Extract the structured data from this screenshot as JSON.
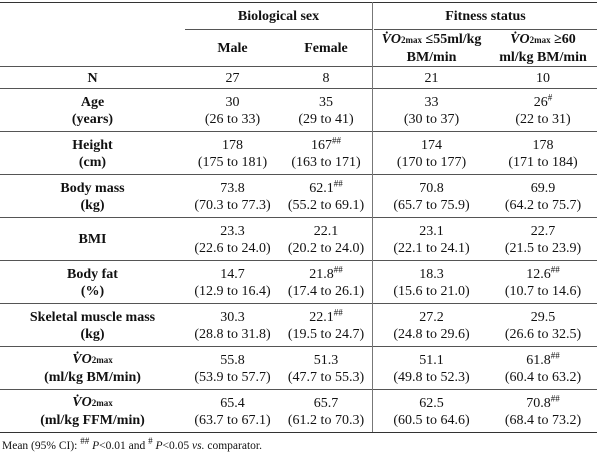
{
  "header": {
    "group_sex": "Biological sex",
    "group_fitness": "Fitness status",
    "col_male": "Male",
    "col_female": "Female",
    "col_fit_low_line1_a": "V̇O",
    "col_fit_low_line1_sub": "2max",
    "col_fit_low_line1_b": " ≤55ml/kg",
    "col_fit_low_line2": "BM/min",
    "col_fit_high_line1_a": "V̇O",
    "col_fit_high_line1_sub": "2max",
    "col_fit_high_line1_b": " ≥60",
    "col_fit_high_line2": "ml/kg BM/min"
  },
  "rows": [
    {
      "label1": "N",
      "label2": "",
      "male": "27",
      "male_ci": "",
      "female": "8",
      "female_ci": "",
      "low": "21",
      "low_ci": "",
      "high": "10",
      "high_ci": "",
      "female_sup": "",
      "high_sup": ""
    },
    {
      "label1": "Age",
      "label2": "(years)",
      "male": "30",
      "male_ci": "(26 to 33)",
      "female": "35",
      "female_ci": "(29 to 41)",
      "low": "33",
      "low_ci": "(30 to 37)",
      "high": "26",
      "high_ci": "(22 to 31)",
      "female_sup": "",
      "high_sup": "#"
    },
    {
      "label1": "Height",
      "label2": "(cm)",
      "male": "178",
      "male_ci": "(175 to 181)",
      "female": "167",
      "female_ci": "(163 to 171)",
      "low": "174",
      "low_ci": "(170 to 177)",
      "high": "178",
      "high_ci": "(171 to 184)",
      "female_sup": "##",
      "high_sup": ""
    },
    {
      "label1": "Body mass",
      "label2": "(kg)",
      "male": "73.8",
      "male_ci": "(70.3 to 77.3)",
      "female": "62.1",
      "female_ci": "(55.2 to 69.1)",
      "low": "70.8",
      "low_ci": "(65.7 to 75.9)",
      "high": "69.9",
      "high_ci": "(64.2 to 75.7)",
      "female_sup": "##",
      "high_sup": ""
    },
    {
      "label1": "BMI",
      "label2": "",
      "male": "23.3",
      "male_ci": "(22.6 to 24.0)",
      "female": "22.1",
      "female_ci": "(20.2 to 24.0)",
      "low": "23.1",
      "low_ci": "(22.1 to 24.1)",
      "high": "22.7",
      "high_ci": "(21.5 to 23.9)",
      "female_sup": "",
      "high_sup": ""
    },
    {
      "label1": "Body fat",
      "label2": "(%)",
      "male": "14.7",
      "male_ci": "(12.9 to 16.4)",
      "female": "21.8",
      "female_ci": "(17.4 to 26.1)",
      "low": "18.3",
      "low_ci": "(15.6 to 21.0)",
      "high": "12.6",
      "high_ci": "(10.7 to 14.6)",
      "female_sup": "##",
      "high_sup": "##"
    },
    {
      "label1": "Skeletal muscle mass",
      "label2": "(kg)",
      "male": "30.3",
      "male_ci": "(28.8 to 31.8)",
      "female": "22.1",
      "female_ci": "(19.5 to 24.7)",
      "low": "27.2",
      "low_ci": "(24.8 to 29.6)",
      "high": "29.5",
      "high_ci": "(26.6 to 32.5)",
      "female_sup": "##",
      "high_sup": ""
    },
    {
      "label1_vo": "V̇O",
      "label1_sub": "2max",
      "label2": "(ml/kg BM/min)",
      "male": "55.8",
      "male_ci": "(53.9 to 57.7)",
      "female": "51.3",
      "female_ci": "(47.7 to 55.3)",
      "low": "51.1",
      "low_ci": "(49.8 to 52.3)",
      "high": "61.8",
      "high_ci": "(60.4 to 63.2)",
      "female_sup": "",
      "high_sup": "##"
    },
    {
      "label1_vo": "V̇O",
      "label1_sub": "2max",
      "label2": "(ml/kg FFM/min)",
      "male": "65.4",
      "male_ci": "(63.7 to 67.1)",
      "female": "65.7",
      "female_ci": "(61.2 to 70.3)",
      "low": "62.5",
      "low_ci": "(60.5 to 64.6)",
      "high": "70.8",
      "high_ci": "(68.4 to 73.2)",
      "female_sup": "",
      "high_sup": "##"
    }
  ],
  "footnote": {
    "prefix": "Mean (95% CI): ",
    "sup1": "##",
    "p1": " P",
    "t1": "<0.01 and ",
    "sup2": "#",
    "p2": " P",
    "t2": "<0.05 ",
    "vs": "vs.",
    "t3": " comparator."
  }
}
